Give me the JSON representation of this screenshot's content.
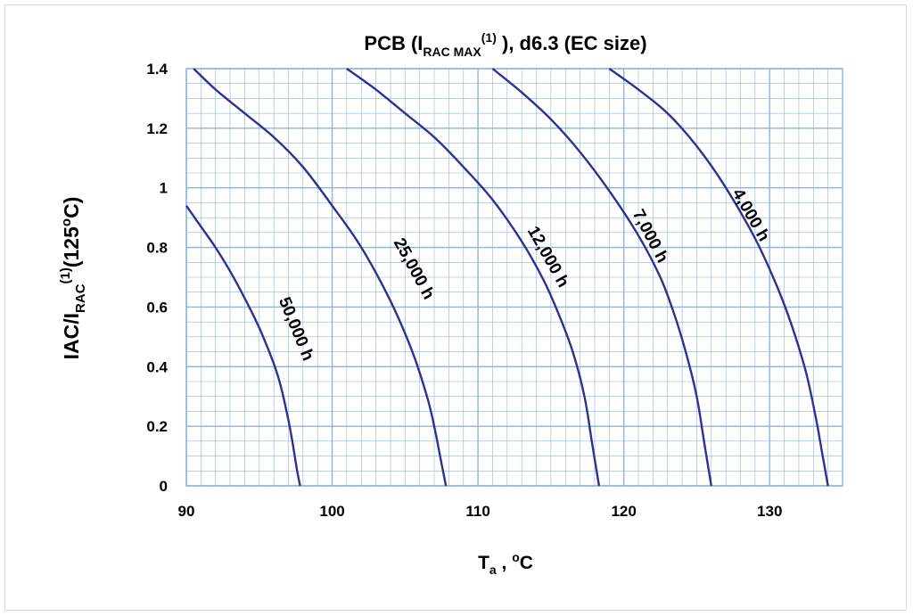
{
  "chart_data": {
    "type": "line",
    "title": {
      "prefix": "PCB (I",
      "sub": "RAC MAX",
      "sup": "(1)",
      "suffix": " ), d6.3 (EC size)"
    },
    "xlabel": {
      "main": "T",
      "sub": "a",
      "rest": " , ",
      "sup": "o",
      "unit": "C"
    },
    "ylabel": {
      "p1": "IAC/I",
      "sub": "RAC",
      "sup": "(1)",
      "p2": "(125",
      "sup2": "o",
      "p3": "C)"
    },
    "xlim": [
      90,
      135
    ],
    "ylim": [
      0,
      1.4
    ],
    "x_ticks": [
      "90",
      "100",
      "110",
      "120",
      "130"
    ],
    "y_ticks": [
      "0",
      "0.2",
      "0.4",
      "0.6",
      "0.8",
      "1",
      "1.2",
      "1.4"
    ],
    "grid": {
      "major": true,
      "minor": true
    },
    "line_color": "#2e3192",
    "grid_color": "#8fb4dc",
    "series": [
      {
        "name": "50,000 h",
        "label_at": [
          97.2,
          0.52
        ],
        "x": [
          90.0,
          91.0,
          92.0,
          93.0,
          94.0,
          95.0,
          96.0,
          96.5,
          97.0,
          97.3,
          97.6,
          97.8
        ],
        "y": [
          0.94,
          0.87,
          0.8,
          0.72,
          0.63,
          0.53,
          0.41,
          0.33,
          0.22,
          0.14,
          0.05,
          0.0
        ]
      },
      {
        "name": "25,000 h",
        "label_at": [
          105.3,
          0.72
        ],
        "x": [
          90.5,
          92.0,
          94.0,
          96.0,
          98.0,
          100.0,
          102.0,
          104.0,
          105.5,
          106.5,
          107.0,
          107.4,
          107.8
        ],
        "y": [
          1.4,
          1.33,
          1.25,
          1.17,
          1.07,
          0.94,
          0.8,
          0.62,
          0.45,
          0.3,
          0.2,
          0.1,
          0.0
        ]
      },
      {
        "name": "12,000 h",
        "label_at": [
          114.5,
          0.76
        ],
        "x": [
          101.0,
          103.0,
          105.0,
          107.0,
          109.0,
          111.0,
          113.0,
          114.5,
          115.5,
          116.5,
          117.3,
          117.8,
          118.3
        ],
        "y": [
          1.4,
          1.33,
          1.25,
          1.17,
          1.07,
          0.96,
          0.82,
          0.69,
          0.58,
          0.45,
          0.3,
          0.15,
          0.0
        ]
      },
      {
        "name": "7,000 h",
        "label_at": [
          121.5,
          0.83
        ],
        "x": [
          111.0,
          113.0,
          115.0,
          117.0,
          119.0,
          121.0,
          122.5,
          123.5,
          124.3,
          125.0,
          125.5,
          126.0
        ],
        "y": [
          1.4,
          1.32,
          1.23,
          1.12,
          0.99,
          0.84,
          0.7,
          0.57,
          0.44,
          0.3,
          0.15,
          0.0
        ]
      },
      {
        "name": "4,000 h",
        "label_at": [
          128.4,
          0.9
        ],
        "x": [
          119.0,
          121.0,
          123.0,
          125.0,
          127.0,
          129.0,
          130.5,
          131.5,
          132.5,
          133.2,
          133.6,
          134.0
        ],
        "y": [
          1.4,
          1.33,
          1.25,
          1.14,
          1.0,
          0.83,
          0.67,
          0.54,
          0.38,
          0.22,
          0.11,
          0.0
        ]
      }
    ]
  }
}
